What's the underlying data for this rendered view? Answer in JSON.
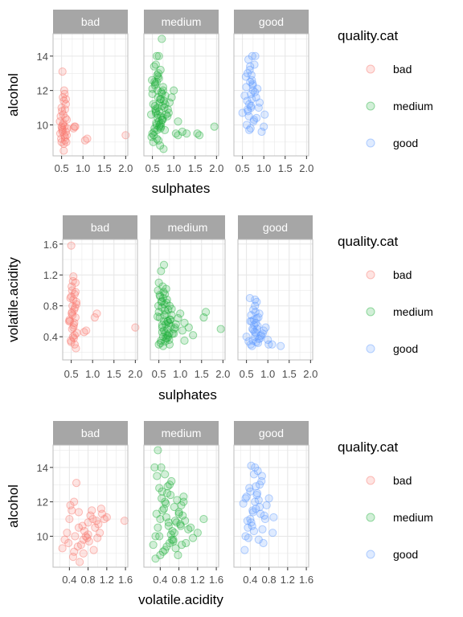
{
  "colors": {
    "bad": "#F8766D",
    "medium": "#1FB03A",
    "good": "#619CFF",
    "strip": "#A6A6A6",
    "grid": "#E6E6E6",
    "border": "#BDBDBD",
    "tick_text": "#4D4D4D"
  },
  "legend": {
    "title": "quality.cat",
    "entries": [
      "bad",
      "medium",
      "good"
    ]
  },
  "chart_data": [
    {
      "type": "scatter",
      "facet_by": "quality.cat",
      "facets": [
        "bad",
        "medium",
        "good"
      ],
      "xlabel": "sulphates",
      "ylabel": "alcohol",
      "xlim": [
        0.3,
        2.05
      ],
      "ylim": [
        8.2,
        15.3
      ],
      "xticks": [
        0.5,
        1.0,
        1.5,
        2.0
      ],
      "xtick_labels": [
        "0.5",
        "1.0",
        "1.5",
        "2.0"
      ],
      "yticks": [
        10,
        12,
        14
      ],
      "ytick_labels": [
        "10",
        "12",
        "14"
      ],
      "grid": true,
      "legend_position": "right",
      "series": [
        {
          "name": "bad",
          "x": [
            0.52,
            0.55,
            0.5,
            0.58,
            0.6,
            0.48,
            0.62,
            0.53,
            0.57,
            0.51,
            0.6,
            0.47,
            0.56,
            0.52,
            0.63,
            0.54,
            0.49,
            0.58,
            0.61,
            0.55,
            0.5,
            0.59,
            0.53,
            0.57,
            0.46,
            0.52,
            0.62,
            0.55,
            0.58,
            0.51,
            0.8,
            0.78,
            0.82,
            1.05,
            1.1,
            2.0,
            0.56,
            0.6,
            0.54,
            0.5
          ],
          "y": [
            13.1,
            11.4,
            11.0,
            10.9,
            11.2,
            10.5,
            10.3,
            10.0,
            9.9,
            9.8,
            9.6,
            9.5,
            9.4,
            9.7,
            9.8,
            10.1,
            9.2,
            9.1,
            9.0,
            8.9,
            9.9,
            10.4,
            11.6,
            11.8,
            10.2,
            9.6,
            9.4,
            8.5,
            9.3,
            10.8,
            9.9,
            9.8,
            9.9,
            9.1,
            9.2,
            9.4,
            12.0,
            11.5,
            10.6,
            9.0
          ]
        },
        {
          "name": "medium",
          "x": [
            0.5,
            0.55,
            0.6,
            0.65,
            0.7,
            0.58,
            0.62,
            0.52,
            0.68,
            0.72,
            0.75,
            0.56,
            0.6,
            0.64,
            0.48,
            0.54,
            0.66,
            0.7,
            0.62,
            0.58,
            0.73,
            0.77,
            0.8,
            0.5,
            0.57,
            0.63,
            0.69,
            0.53,
            0.61,
            0.67,
            0.74,
            0.82,
            0.86,
            0.9,
            0.95,
            1.0,
            1.05,
            1.1,
            1.2,
            1.3,
            1.6,
            1.95,
            1.55,
            1.1,
            0.85,
            0.78,
            0.7,
            0.62,
            0.55,
            0.5,
            0.47,
            0.6,
            0.65,
            0.72,
            0.58,
            0.64,
            0.68,
            0.76,
            0.52,
            0.66,
            0.8,
            0.75,
            0.57,
            0.63,
            0.69,
            0.74,
            0.88,
            0.71,
            0.59,
            0.49,
            0.54,
            0.61,
            0.67,
            0.73,
            0.79,
            0.56,
            0.6,
            0.7,
            0.65,
            0.62
          ],
          "y": [
            9.5,
            9.8,
            10.0,
            10.2,
            10.5,
            10.8,
            11.0,
            11.2,
            11.5,
            11.8,
            12.0,
            12.3,
            12.5,
            13.0,
            9.3,
            9.6,
            9.9,
            10.1,
            10.4,
            10.7,
            11.1,
            11.4,
            11.7,
            12.1,
            12.4,
            12.8,
            13.2,
            9.4,
            9.7,
            10.0,
            10.3,
            10.6,
            10.9,
            11.3,
            11.6,
            12.0,
            9.5,
            9.4,
            9.6,
            9.5,
            9.4,
            9.9,
            9.5,
            10.2,
            10.5,
            11.0,
            11.5,
            12.0,
            12.5,
            11.8,
            10.6,
            14.0,
            14.0,
            15.0,
            13.5,
            9.1,
            8.8,
            8.6,
            9.0,
            10.8,
            11.2,
            12.2,
            10.9,
            11.6,
            9.8,
            10.4,
            10.7,
            11.9,
            10.1,
            12.6,
            13.4,
            12.9,
            11.3,
            10.3,
            9.7,
            11.1,
            9.2,
            9.9,
            12.7,
            10.6
          ]
        },
        {
          "name": "good",
          "x": [
            0.6,
            0.65,
            0.7,
            0.72,
            0.75,
            0.68,
            0.62,
            0.78,
            0.8,
            0.66,
            0.7,
            0.74,
            0.58,
            0.63,
            0.77,
            0.82,
            0.85,
            0.9,
            0.95,
            1.0,
            1.02,
            0.88,
            0.72,
            0.67,
            0.61,
            0.55,
            0.5,
            0.69,
            0.76,
            0.71,
            0.64,
            0.73,
            0.79,
            0.59,
            0.83,
            0.66,
            0.7,
            0.74,
            0.68,
            0.62
          ],
          "y": [
            10.0,
            10.5,
            11.0,
            11.5,
            12.0,
            12.5,
            13.0,
            13.5,
            14.0,
            11.2,
            11.8,
            12.3,
            12.8,
            10.8,
            10.3,
            11.6,
            12.1,
            11.3,
            9.6,
            9.9,
            10.6,
            11.0,
            12.6,
            13.2,
            11.4,
            11.7,
            10.7,
            9.8,
            10.2,
            12.9,
            13.8,
            14.0,
            11.9,
            12.2,
            10.4,
            9.7,
            11.1,
            12.4,
            13.4,
            10.9
          ]
        }
      ]
    },
    {
      "type": "scatter",
      "facet_by": "quality.cat",
      "facets": [
        "bad",
        "medium",
        "good"
      ],
      "xlabel": "sulphates",
      "ylabel": "volatile.acidity",
      "xlim": [
        0.3,
        2.05
      ],
      "ylim": [
        0.1,
        1.66
      ],
      "xticks": [
        0.5,
        1.0,
        1.5,
        2.0
      ],
      "xtick_labels": [
        "0.5",
        "1.0",
        "1.5",
        "2.0"
      ],
      "yticks": [
        0.4,
        0.8,
        1.2,
        1.6
      ],
      "ytick_labels": [
        "0.4",
        "0.8",
        "1.2",
        "1.6"
      ],
      "grid": true,
      "legend_position": "right",
      "series": [
        {
          "name": "bad",
          "x": [
            0.5,
            0.55,
            0.6,
            0.52,
            0.58,
            0.48,
            0.62,
            0.53,
            0.57,
            0.51,
            0.6,
            0.47,
            0.56,
            0.52,
            0.63,
            0.54,
            0.49,
            0.58,
            0.61,
            0.55,
            0.5,
            0.59,
            0.53,
            0.57,
            0.46,
            0.52,
            0.62,
            0.55,
            0.58,
            0.51,
            0.8,
            0.85,
            1.05,
            1.1,
            0.56,
            0.6,
            0.54,
            0.5,
            2.0,
            0.45
          ],
          "y": [
            1.58,
            1.18,
            1.1,
            1.0,
            0.95,
            0.9,
            0.85,
            0.8,
            0.75,
            0.7,
            0.65,
            0.6,
            0.55,
            0.5,
            0.45,
            0.4,
            0.35,
            0.3,
            0.25,
            0.88,
            0.92,
            0.78,
            0.68,
            0.58,
            0.62,
            0.72,
            0.82,
            0.52,
            0.42,
            1.05,
            0.46,
            0.48,
            0.65,
            0.7,
            0.38,
            0.98,
            1.12,
            0.33,
            0.52,
            0.6
          ]
        },
        {
          "name": "medium",
          "x": [
            0.5,
            0.55,
            0.6,
            0.65,
            0.7,
            0.58,
            0.62,
            0.52,
            0.68,
            0.72,
            0.75,
            0.56,
            0.6,
            0.64,
            0.48,
            0.54,
            0.66,
            0.7,
            0.62,
            0.58,
            0.73,
            0.77,
            0.8,
            0.5,
            0.57,
            0.63,
            0.69,
            0.53,
            0.61,
            0.67,
            0.74,
            0.82,
            0.86,
            0.9,
            0.95,
            1.0,
            1.05,
            1.1,
            1.2,
            1.3,
            1.6,
            1.95,
            1.55,
            1.1,
            0.85,
            0.78,
            0.7,
            0.62,
            0.55,
            0.5,
            0.47,
            0.6,
            0.65,
            0.72,
            0.58,
            0.64,
            0.68,
            0.76,
            0.52,
            0.66,
            0.8,
            0.75,
            0.57,
            0.63,
            0.69,
            0.74,
            0.88,
            0.71,
            0.59,
            0.49
          ],
          "y": [
            0.3,
            0.35,
            0.4,
            0.45,
            0.5,
            0.55,
            0.6,
            0.65,
            0.7,
            0.75,
            0.8,
            0.85,
            0.9,
            0.95,
            1.0,
            0.32,
            0.38,
            0.42,
            0.48,
            0.52,
            0.58,
            0.62,
            0.68,
            0.72,
            0.78,
            0.82,
            0.88,
            0.92,
            0.98,
            1.02,
            0.36,
            0.44,
            0.5,
            0.56,
            0.64,
            0.7,
            0.48,
            0.58,
            0.52,
            0.42,
            0.72,
            0.5,
            0.65,
            0.35,
            0.44,
            0.54,
            0.6,
            1.33,
            1.25,
            1.1,
            0.66,
            0.28,
            0.34,
            0.4,
            0.46,
            0.74,
            0.84,
            0.62,
            0.94,
            0.56,
            0.76,
            0.3,
            0.86,
            0.68,
            0.38,
            0.44,
            0.52,
            0.6,
            1.05,
            0.8
          ]
        },
        {
          "name": "good",
          "x": [
            0.6,
            0.65,
            0.7,
            0.72,
            0.75,
            0.68,
            0.62,
            0.78,
            0.8,
            0.66,
            0.7,
            0.74,
            0.58,
            0.63,
            0.77,
            0.82,
            0.85,
            0.9,
            0.95,
            1.0,
            1.02,
            0.88,
            0.72,
            0.67,
            0.61,
            0.55,
            0.5,
            0.69,
            0.76,
            0.71,
            0.64,
            0.73,
            0.79,
            0.59,
            0.83,
            0.66,
            0.7,
            0.74,
            1.1,
            1.3
          ],
          "y": [
            0.3,
            0.35,
            0.4,
            0.45,
            0.5,
            0.55,
            0.6,
            0.65,
            0.7,
            0.75,
            0.8,
            0.85,
            0.9,
            0.28,
            0.32,
            0.38,
            0.42,
            0.48,
            0.52,
            0.36,
            0.3,
            0.44,
            0.58,
            0.62,
            0.68,
            0.34,
            0.4,
            0.46,
            0.54,
            0.72,
            0.5,
            0.33,
            0.37,
            0.6,
            0.41,
            0.49,
            0.88,
            0.64,
            0.3,
            0.28
          ]
        }
      ]
    },
    {
      "type": "scatter",
      "facet_by": "quality.cat",
      "facets": [
        "bad",
        "medium",
        "good"
      ],
      "xlabel": "volatile.acidity",
      "ylabel": "alcohol",
      "xlim": [
        0.05,
        1.65
      ],
      "ylim": [
        8.2,
        15.3
      ],
      "xticks": [
        0.4,
        0.8,
        1.2,
        1.6
      ],
      "xtick_labels": [
        "0.4",
        "0.8",
        "1.2",
        "1.6"
      ],
      "yticks": [
        10,
        12,
        14
      ],
      "ytick_labels": [
        "10",
        "12",
        "14"
      ],
      "grid": true,
      "legend_position": "right",
      "series": [
        {
          "name": "bad",
          "x": [
            0.25,
            0.3,
            0.35,
            0.4,
            0.45,
            0.5,
            0.55,
            0.6,
            0.65,
            0.7,
            0.75,
            0.8,
            0.85,
            0.9,
            0.95,
            1.0,
            1.05,
            1.1,
            1.15,
            1.2,
            0.38,
            0.48,
            0.58,
            0.68,
            0.78,
            0.88,
            0.98,
            1.08,
            0.42,
            0.52,
            0.62,
            0.72,
            0.82,
            0.92,
            1.02,
            1.58,
            0.5,
            0.6,
            0.7,
            0.8
          ],
          "y": [
            9.3,
            9.8,
            10.2,
            11.0,
            11.5,
            12.0,
            13.1,
            10.5,
            9.5,
            9.0,
            10.0,
            10.8,
            11.2,
            11.0,
            10.5,
            9.9,
            10.2,
            11.3,
            11.0,
            11.1,
            9.6,
            8.8,
            9.4,
            10.6,
            9.9,
            11.5,
            10.9,
            11.6,
            11.8,
            10.0,
            8.5,
            10.3,
            9.7,
            9.2,
            10.7,
            10.9,
            9.1,
            11.4,
            9.8,
            10.1
          ]
        },
        {
          "name": "medium",
          "x": [
            0.25,
            0.3,
            0.35,
            0.4,
            0.45,
            0.5,
            0.55,
            0.6,
            0.65,
            0.7,
            0.75,
            0.8,
            0.85,
            0.9,
            0.95,
            1.0,
            0.28,
            0.33,
            0.38,
            0.43,
            0.48,
            0.53,
            0.58,
            0.63,
            0.68,
            0.73,
            0.78,
            0.83,
            0.88,
            0.93,
            1.05,
            1.1,
            1.2,
            1.33,
            0.35,
            0.42,
            0.5,
            0.56,
            0.62,
            0.7,
            0.3,
            0.4,
            0.46,
            0.54,
            0.6,
            0.66,
            0.72,
            0.8,
            0.86,
            0.9,
            0.44,
            0.52,
            0.58,
            0.64,
            0.5,
            0.38,
            0.76,
            0.84,
            0.32,
            0.68
          ],
          "y": [
            9.5,
            10.0,
            10.5,
            11.0,
            11.5,
            12.0,
            12.5,
            13.0,
            9.8,
            10.2,
            10.8,
            11.3,
            11.8,
            12.3,
            9.6,
            10.4,
            14.0,
            13.5,
            12.8,
            12.2,
            11.6,
            11.1,
            10.6,
            10.1,
            9.7,
            9.3,
            8.9,
            10.7,
            11.2,
            10.9,
            10.5,
            9.9,
            10.2,
            11.0,
            15.0,
            14.0,
            13.6,
            12.9,
            12.4,
            11.7,
            8.7,
            8.9,
            9.1,
            9.4,
            9.6,
            10.3,
            10.9,
            11.4,
            9.5,
            12.0,
            12.6,
            11.9,
            10.8,
            13.2,
            9.2,
            10.0,
            12.1,
            10.6,
            11.3,
            9.8
          ]
        },
        {
          "name": "good",
          "x": [
            0.3,
            0.35,
            0.4,
            0.45,
            0.5,
            0.55,
            0.6,
            0.65,
            0.7,
            0.75,
            0.32,
            0.38,
            0.42,
            0.48,
            0.52,
            0.58,
            0.62,
            0.68,
            0.36,
            0.44,
            0.5,
            0.56,
            0.64,
            0.4,
            0.46,
            0.34,
            0.54,
            0.6,
            0.72,
            0.8,
            0.88,
            0.28,
            0.25,
            0.3,
            0.42,
            0.48,
            0.52,
            0.58,
            0.66,
            0.9
          ],
          "y": [
            10.0,
            10.5,
            11.0,
            11.5,
            12.0,
            12.5,
            13.0,
            13.5,
            11.2,
            11.8,
            12.3,
            12.8,
            10.8,
            10.3,
            11.6,
            12.1,
            11.3,
            9.6,
            9.9,
            10.6,
            14.0,
            13.8,
            13.2,
            12.6,
            11.4,
            10.9,
            12.4,
            11.7,
            11.0,
            12.2,
            10.2,
            9.2,
            11.9,
            12.2,
            14.1,
            13.6,
            12.9,
            9.8,
            10.4,
            11.1
          ]
        }
      ]
    }
  ]
}
